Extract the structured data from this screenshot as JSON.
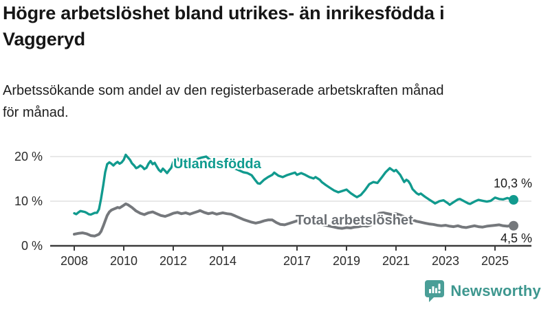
{
  "header": {
    "title": "Högre arbetslöshet bland utrikes- än inrikesfödda i Vaggeryd",
    "title_lines": [
      "Högre arbetslöshet bland utrikes- än inrikesfödda i",
      "Vaggeryd"
    ],
    "subtitle": "Arbetssökande som andel av den registerbaserade arbetskraften månad för månad.",
    "subtitle_lines": [
      "Arbetssökande som andel av den registerbaserade arbetskraften månad",
      "för månad."
    ]
  },
  "footer": {
    "brand": "Newsworthy",
    "brand_color": "#3e978f",
    "logo_icon": "speech-bubble-bar-chart-exclamation"
  },
  "colors": {
    "accent_teal": "#119a8e",
    "line_gray": "#75787c",
    "label_gray": "#6b6f74",
    "grid": "#d9d9d9",
    "axis": "#3b3b3b"
  },
  "chart_data": {
    "type": "line",
    "x_unit": "decimal_year",
    "y_unit": "percent",
    "ylim": [
      0,
      22
    ],
    "xlim": [
      2007,
      2026.5
    ],
    "grid": "horizontal-only",
    "legend_position": "inline-labels",
    "y_axis": {
      "ticks": [
        {
          "value": 20,
          "label": "20 %"
        },
        {
          "value": 10,
          "label": "10 %"
        },
        {
          "value": 0,
          "label": "0 %"
        }
      ]
    },
    "x_axis": {
      "ticks": [
        {
          "value": 2008,
          "label": "2008"
        },
        {
          "value": 2010,
          "label": "2010"
        },
        {
          "value": 2012,
          "label": "2012"
        },
        {
          "value": 2014,
          "label": "2014"
        },
        {
          "value": 2017,
          "label": "2017"
        },
        {
          "value": 2019,
          "label": "2019"
        },
        {
          "value": 2021,
          "label": "2021"
        },
        {
          "value": 2023,
          "label": "2023"
        },
        {
          "value": 2025,
          "label": "2025"
        }
      ]
    },
    "series": [
      {
        "id": "utlandsfodda",
        "name": "Utlandsfödda",
        "color": "#119a8e",
        "width": 3.4,
        "end_label": "10,3 %",
        "end_value": 10.3,
        "points": [
          [
            2008.0,
            7.3
          ],
          [
            2008.08,
            7.1
          ],
          [
            2008.17,
            7.5
          ],
          [
            2008.25,
            7.8
          ],
          [
            2008.33,
            7.7
          ],
          [
            2008.42,
            7.6
          ],
          [
            2008.5,
            7.4
          ],
          [
            2008.58,
            7.1
          ],
          [
            2008.67,
            7.0
          ],
          [
            2008.75,
            7.2
          ],
          [
            2008.83,
            7.4
          ],
          [
            2008.92,
            7.4
          ],
          [
            2009.0,
            8.2
          ],
          [
            2009.08,
            10.5
          ],
          [
            2009.17,
            13.5
          ],
          [
            2009.25,
            16.5
          ],
          [
            2009.33,
            18.3
          ],
          [
            2009.42,
            18.7
          ],
          [
            2009.5,
            18.4
          ],
          [
            2009.58,
            18.0
          ],
          [
            2009.67,
            18.5
          ],
          [
            2009.75,
            18.8
          ],
          [
            2009.83,
            18.4
          ],
          [
            2009.92,
            18.7
          ],
          [
            2010.0,
            19.3
          ],
          [
            2010.08,
            20.4
          ],
          [
            2010.17,
            19.8
          ],
          [
            2010.25,
            19.3
          ],
          [
            2010.33,
            18.5
          ],
          [
            2010.42,
            18.0
          ],
          [
            2010.5,
            17.4
          ],
          [
            2010.58,
            17.6
          ],
          [
            2010.67,
            18.0
          ],
          [
            2010.75,
            17.7
          ],
          [
            2010.83,
            17.2
          ],
          [
            2010.92,
            17.5
          ],
          [
            2011.0,
            18.4
          ],
          [
            2011.08,
            19.0
          ],
          [
            2011.17,
            18.3
          ],
          [
            2011.25,
            18.6
          ],
          [
            2011.33,
            17.8
          ],
          [
            2011.42,
            17.0
          ],
          [
            2011.5,
            16.6
          ],
          [
            2011.58,
            17.3
          ],
          [
            2011.67,
            16.8
          ],
          [
            2011.75,
            16.3
          ],
          [
            2011.83,
            16.9
          ],
          [
            2011.92,
            17.5
          ],
          [
            2012.0,
            18.8
          ],
          [
            2012.08,
            19.3
          ],
          [
            2012.17,
            19.6
          ],
          [
            2012.25,
            19.0
          ],
          [
            2012.33,
            18.6
          ],
          [
            2012.42,
            18.9
          ],
          [
            2012.5,
            18.4
          ],
          [
            2012.58,
            18.1
          ],
          [
            2012.67,
            18.5
          ],
          [
            2012.75,
            18.9
          ],
          [
            2012.83,
            18.6
          ],
          [
            2012.92,
            19.0
          ],
          [
            2013.0,
            19.5
          ],
          [
            2013.17,
            19.8
          ],
          [
            2013.33,
            20.0
          ],
          [
            2013.5,
            19.2
          ],
          [
            2013.67,
            18.8
          ],
          [
            2013.83,
            18.4
          ],
          [
            2014.0,
            18.6
          ],
          [
            2014.17,
            18.2
          ],
          [
            2014.33,
            17.8
          ],
          [
            2014.5,
            17.3
          ],
          [
            2014.67,
            16.9
          ],
          [
            2014.83,
            16.5
          ],
          [
            2015.0,
            16.3
          ],
          [
            2015.17,
            15.8
          ],
          [
            2015.33,
            14.6
          ],
          [
            2015.42,
            14.0
          ],
          [
            2015.5,
            13.9
          ],
          [
            2015.67,
            14.8
          ],
          [
            2015.83,
            15.4
          ],
          [
            2016.0,
            15.9
          ],
          [
            2016.08,
            16.4
          ],
          [
            2016.25,
            15.7
          ],
          [
            2016.42,
            15.4
          ],
          [
            2016.58,
            15.8
          ],
          [
            2016.75,
            16.1
          ],
          [
            2016.92,
            16.4
          ],
          [
            2017.0,
            15.9
          ],
          [
            2017.17,
            16.3
          ],
          [
            2017.33,
            15.9
          ],
          [
            2017.5,
            15.4
          ],
          [
            2017.67,
            15.1
          ],
          [
            2017.75,
            15.4
          ],
          [
            2017.92,
            14.8
          ],
          [
            2018.0,
            14.3
          ],
          [
            2018.17,
            13.6
          ],
          [
            2018.33,
            13.0
          ],
          [
            2018.5,
            12.4
          ],
          [
            2018.67,
            12.0
          ],
          [
            2018.83,
            12.3
          ],
          [
            2019.0,
            12.6
          ],
          [
            2019.17,
            11.8
          ],
          [
            2019.33,
            11.2
          ],
          [
            2019.42,
            10.9
          ],
          [
            2019.58,
            11.4
          ],
          [
            2019.75,
            12.5
          ],
          [
            2019.92,
            13.8
          ],
          [
            2020.08,
            14.3
          ],
          [
            2020.25,
            14.1
          ],
          [
            2020.42,
            15.3
          ],
          [
            2020.58,
            16.5
          ],
          [
            2020.75,
            17.4
          ],
          [
            2020.92,
            16.7
          ],
          [
            2021.0,
            17.0
          ],
          [
            2021.17,
            15.9
          ],
          [
            2021.33,
            14.3
          ],
          [
            2021.42,
            14.8
          ],
          [
            2021.5,
            14.5
          ],
          [
            2021.58,
            13.8
          ],
          [
            2021.67,
            12.7
          ],
          [
            2021.83,
            11.8
          ],
          [
            2021.92,
            11.5
          ],
          [
            2022.0,
            11.7
          ],
          [
            2022.17,
            11.0
          ],
          [
            2022.33,
            10.4
          ],
          [
            2022.5,
            9.8
          ],
          [
            2022.58,
            9.5
          ],
          [
            2022.75,
            10.0
          ],
          [
            2022.92,
            10.2
          ],
          [
            2023.08,
            9.6
          ],
          [
            2023.17,
            9.2
          ],
          [
            2023.33,
            9.8
          ],
          [
            2023.5,
            10.4
          ],
          [
            2023.58,
            10.5
          ],
          [
            2023.75,
            10.0
          ],
          [
            2023.92,
            9.5
          ],
          [
            2024.0,
            9.4
          ],
          [
            2024.17,
            9.9
          ],
          [
            2024.33,
            10.3
          ],
          [
            2024.5,
            10.1
          ],
          [
            2024.67,
            9.9
          ],
          [
            2024.83,
            10.1
          ],
          [
            2025.0,
            10.8
          ],
          [
            2025.17,
            10.5
          ],
          [
            2025.33,
            10.4
          ],
          [
            2025.5,
            10.7
          ],
          [
            2025.67,
            10.4
          ],
          [
            2025.75,
            10.3
          ]
        ]
      },
      {
        "id": "total",
        "name": "Total arbetslöshet",
        "color": "#75787c",
        "width": 4,
        "end_label": "4,5 %",
        "end_value": 4.5,
        "points": [
          [
            2008.0,
            2.6
          ],
          [
            2008.17,
            2.8
          ],
          [
            2008.33,
            2.9
          ],
          [
            2008.5,
            2.7
          ],
          [
            2008.67,
            2.3
          ],
          [
            2008.83,
            2.2
          ],
          [
            2009.0,
            2.6
          ],
          [
            2009.08,
            3.2
          ],
          [
            2009.17,
            4.4
          ],
          [
            2009.25,
            5.6
          ],
          [
            2009.33,
            6.8
          ],
          [
            2009.42,
            7.6
          ],
          [
            2009.5,
            8.0
          ],
          [
            2009.58,
            8.2
          ],
          [
            2009.67,
            8.4
          ],
          [
            2009.75,
            8.6
          ],
          [
            2009.83,
            8.5
          ],
          [
            2009.92,
            8.8
          ],
          [
            2010.0,
            9.1
          ],
          [
            2010.08,
            9.4
          ],
          [
            2010.17,
            9.2
          ],
          [
            2010.33,
            8.6
          ],
          [
            2010.5,
            7.8
          ],
          [
            2010.67,
            7.3
          ],
          [
            2010.83,
            7.0
          ],
          [
            2011.0,
            7.4
          ],
          [
            2011.17,
            7.6
          ],
          [
            2011.33,
            7.2
          ],
          [
            2011.5,
            6.8
          ],
          [
            2011.67,
            6.6
          ],
          [
            2011.83,
            6.9
          ],
          [
            2012.0,
            7.3
          ],
          [
            2012.17,
            7.5
          ],
          [
            2012.33,
            7.2
          ],
          [
            2012.5,
            7.4
          ],
          [
            2012.67,
            7.1
          ],
          [
            2012.83,
            7.4
          ],
          [
            2013.0,
            7.7
          ],
          [
            2013.08,
            7.9
          ],
          [
            2013.25,
            7.5
          ],
          [
            2013.42,
            7.2
          ],
          [
            2013.58,
            7.4
          ],
          [
            2013.75,
            7.1
          ],
          [
            2013.92,
            7.3
          ],
          [
            2014.0,
            7.4
          ],
          [
            2014.17,
            7.2
          ],
          [
            2014.33,
            7.1
          ],
          [
            2014.5,
            6.7
          ],
          [
            2014.67,
            6.3
          ],
          [
            2014.83,
            5.9
          ],
          [
            2015.0,
            5.6
          ],
          [
            2015.17,
            5.3
          ],
          [
            2015.33,
            5.1
          ],
          [
            2015.5,
            5.3
          ],
          [
            2015.67,
            5.6
          ],
          [
            2015.83,
            5.8
          ],
          [
            2016.0,
            5.8
          ],
          [
            2016.17,
            5.2
          ],
          [
            2016.33,
            4.8
          ],
          [
            2016.5,
            4.7
          ],
          [
            2016.67,
            5.0
          ],
          [
            2016.83,
            5.3
          ],
          [
            2017.0,
            5.6
          ],
          [
            2017.17,
            5.5
          ],
          [
            2017.33,
            5.3
          ],
          [
            2017.5,
            5.2
          ],
          [
            2017.67,
            5.0
          ],
          [
            2017.83,
            4.9
          ],
          [
            2018.0,
            4.8
          ],
          [
            2018.17,
            4.6
          ],
          [
            2018.33,
            4.4
          ],
          [
            2018.5,
            4.2
          ],
          [
            2018.67,
            4.0
          ],
          [
            2018.83,
            3.9
          ],
          [
            2019.0,
            4.1
          ],
          [
            2019.17,
            4.0
          ],
          [
            2019.33,
            4.2
          ],
          [
            2019.5,
            4.3
          ],
          [
            2019.67,
            4.5
          ],
          [
            2019.83,
            4.4
          ],
          [
            2020.0,
            4.7
          ],
          [
            2020.08,
            5.2
          ],
          [
            2020.17,
            6.2
          ],
          [
            2020.25,
            7.0
          ],
          [
            2020.33,
            7.3
          ],
          [
            2020.5,
            7.4
          ],
          [
            2020.67,
            7.2
          ],
          [
            2020.83,
            7.0
          ],
          [
            2021.0,
            7.2
          ],
          [
            2021.17,
            6.9
          ],
          [
            2021.33,
            6.5
          ],
          [
            2021.5,
            6.1
          ],
          [
            2021.67,
            5.8
          ],
          [
            2021.83,
            5.5
          ],
          [
            2022.0,
            5.3
          ],
          [
            2022.17,
            5.1
          ],
          [
            2022.33,
            4.9
          ],
          [
            2022.5,
            4.8
          ],
          [
            2022.67,
            4.6
          ],
          [
            2022.83,
            4.5
          ],
          [
            2023.0,
            4.6
          ],
          [
            2023.17,
            4.4
          ],
          [
            2023.33,
            4.3
          ],
          [
            2023.5,
            4.5
          ],
          [
            2023.67,
            4.2
          ],
          [
            2023.83,
            4.1
          ],
          [
            2024.0,
            4.3
          ],
          [
            2024.17,
            4.5
          ],
          [
            2024.33,
            4.3
          ],
          [
            2024.5,
            4.2
          ],
          [
            2024.67,
            4.4
          ],
          [
            2024.83,
            4.5
          ],
          [
            2025.0,
            4.6
          ],
          [
            2025.17,
            4.7
          ],
          [
            2025.33,
            4.5
          ],
          [
            2025.5,
            4.4
          ],
          [
            2025.67,
            4.6
          ],
          [
            2025.75,
            4.5
          ]
        ]
      }
    ]
  }
}
